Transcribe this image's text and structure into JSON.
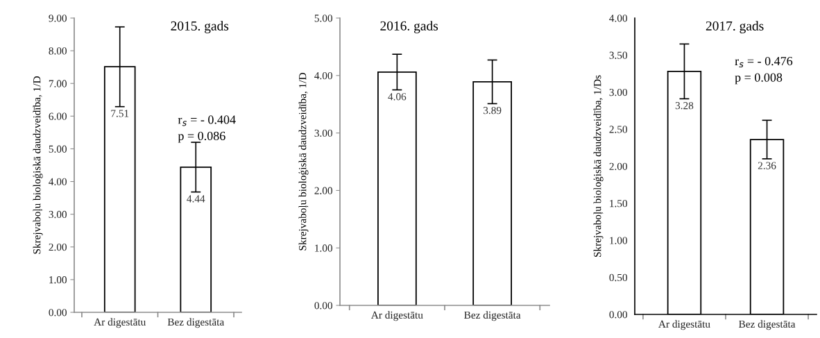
{
  "chart_data": [
    {
      "type": "bar",
      "title": "2015. gads",
      "ylabel": "Skrejvaboļu bioloģiskā daudzveidība, 1/D",
      "categories": [
        "Ar digestātu",
        "Bez digestāta"
      ],
      "values": [
        7.51,
        4.44
      ],
      "errors": [
        1.22,
        0.76
      ],
      "color": "#ffffff",
      "ylim": [
        0,
        9
      ],
      "yticks": [
        {
          "value": 0,
          "label": "0.00"
        },
        {
          "value": 1,
          "label": "1.00"
        },
        {
          "value": 2,
          "label": "2.00"
        },
        {
          "value": 3,
          "label": "3.00"
        },
        {
          "value": 4,
          "label": "4.00"
        },
        {
          "value": 5,
          "label": "5.00"
        },
        {
          "value": 6,
          "label": "6.00"
        },
        {
          "value": 7,
          "label": "7.00"
        },
        {
          "value": 8,
          "label": "8.00"
        },
        {
          "value": 9,
          "label": "9.00"
        }
      ],
      "data_labels": true,
      "grid": false,
      "legend": false,
      "annotations": [
        "r$_{s}$ = - 0.404",
        "p = 0.086"
      ]
    },
    {
      "type": "bar",
      "title": "2016. gads",
      "ylabel": "Skrejvaboļu bioloģiskā daudzveidība, 1/D",
      "categories": [
        "Ar digestātu",
        "Bez digestāta"
      ],
      "values": [
        4.06,
        3.89
      ],
      "errors": [
        0.31,
        0.38
      ],
      "color": "#ffffff",
      "ylim": [
        0,
        5
      ],
      "yticks": [
        {
          "value": 0,
          "label": "0.00"
        },
        {
          "value": 1,
          "label": "1.00"
        },
        {
          "value": 2,
          "label": "2.00"
        },
        {
          "value": 3,
          "label": "3.00"
        },
        {
          "value": 4,
          "label": "4.00"
        },
        {
          "value": 5,
          "label": "5.00"
        }
      ],
      "data_labels": true,
      "grid": false,
      "legend": false
    },
    {
      "type": "bar",
      "title": "2017. gads",
      "ylabel": "Skrejvaboļu bioloģiskā daudzveidība, 1/Ds",
      "categories": [
        "Ar digestātu",
        "Bez digestāta"
      ],
      "values": [
        3.28,
        2.36
      ],
      "errors": [
        0.37,
        0.26
      ],
      "color": "#ffffff",
      "ylim": [
        0,
        4
      ],
      "yticks": [
        {
          "value": 0,
          "label": "0.00"
        },
        {
          "value": 0.5,
          "label": "0.50"
        },
        {
          "value": 1,
          "label": "1.00"
        },
        {
          "value": 1.5,
          "label": "1.50"
        },
        {
          "value": 2,
          "label": "2.00"
        },
        {
          "value": 2.5,
          "label": "2.50"
        },
        {
          "value": 3,
          "label": "3.00"
        },
        {
          "value": 3.5,
          "label": "3.50"
        },
        {
          "value": 4,
          "label": "4.00"
        }
      ],
      "data_labels": true,
      "grid": false,
      "legend": false,
      "annotations": [
        "r$_{s}$ = - 0.476",
        "p = 0.008"
      ]
    }
  ]
}
